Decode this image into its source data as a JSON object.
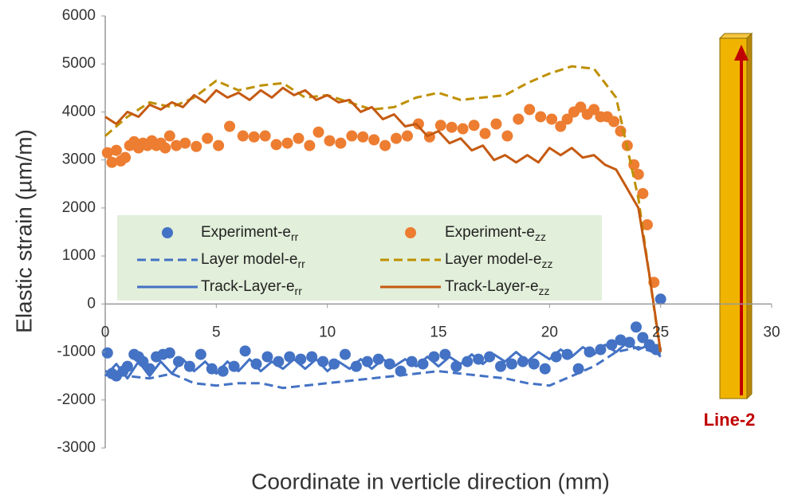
{
  "chart_data": {
    "type": "scatter-line",
    "x_label": "Coordinate in verticle direction (mm)",
    "y_label": "Elastic strain (µm/m)",
    "annotation": "Line-2",
    "xlim": [
      0,
      30
    ],
    "xticks": [
      0,
      5,
      10,
      15,
      20,
      25,
      30
    ],
    "ylim": [
      -3000,
      6000
    ],
    "yticks": [
      -3000,
      -2000,
      -1000,
      0,
      1000,
      2000,
      3000,
      4000,
      5000,
      6000
    ],
    "grid": false,
    "series": [
      {
        "name": "Experiment-e",
        "subscript": "rr",
        "kind": "markers",
        "color": "#4472c4",
        "x": [
          0.1,
          0.3,
          0.5,
          0.8,
          1.0,
          1.3,
          1.5,
          1.7,
          2.0,
          2.3,
          2.6,
          2.9,
          3.3,
          3.8,
          4.3,
          4.8,
          5.3,
          5.8,
          6.3,
          6.8,
          7.3,
          7.8,
          8.3,
          8.8,
          9.3,
          9.8,
          10.3,
          10.8,
          11.3,
          11.8,
          12.3,
          12.8,
          13.3,
          13.8,
          14.3,
          14.8,
          15.3,
          15.8,
          16.3,
          16.8,
          17.3,
          17.8,
          18.3,
          18.8,
          19.3,
          19.8,
          20.3,
          20.8,
          21.3,
          21.8,
          22.3,
          22.8,
          23.2,
          23.6,
          23.9,
          24.2,
          24.5,
          24.8,
          25.0
        ],
        "values": [
          -1020,
          -1450,
          -1500,
          -1400,
          -1300,
          -1050,
          -1100,
          -1200,
          -1350,
          -1100,
          -1050,
          -1020,
          -1200,
          -1300,
          -1050,
          -1350,
          -1400,
          -1300,
          -980,
          -1250,
          -1100,
          -1200,
          -1100,
          -1150,
          -1100,
          -1200,
          -1250,
          -1050,
          -1300,
          -1200,
          -1150,
          -1250,
          -1400,
          -1200,
          -1250,
          -1100,
          -1050,
          -1300,
          -1200,
          -1150,
          -1100,
          -1300,
          -1250,
          -1200,
          -1250,
          -1350,
          -1100,
          -1050,
          -1350,
          -1000,
          -950,
          -850,
          -750,
          -800,
          -480,
          -700,
          -850,
          -950,
          100
        ]
      },
      {
        "name": "Experiment-e",
        "subscript": "zz",
        "kind": "markers",
        "color": "#ed7d31",
        "x": [
          0.1,
          0.3,
          0.5,
          0.7,
          0.9,
          1.1,
          1.3,
          1.5,
          1.7,
          1.9,
          2.1,
          2.3,
          2.5,
          2.7,
          2.9,
          3.2,
          3.6,
          4.1,
          4.6,
          5.1,
          5.6,
          6.2,
          6.7,
          7.2,
          7.7,
          8.2,
          8.7,
          9.2,
          9.6,
          10.1,
          10.6,
          11.1,
          11.6,
          12.1,
          12.6,
          13.1,
          13.6,
          14.1,
          14.6,
          15.1,
          15.6,
          16.1,
          16.6,
          17.1,
          17.6,
          18.1,
          18.6,
          19.1,
          19.6,
          20.1,
          20.5,
          20.8,
          21.1,
          21.4,
          21.7,
          22.0,
          22.3,
          22.6,
          22.9,
          23.2,
          23.5,
          23.8,
          24.0,
          24.2,
          24.4,
          24.7
        ],
        "values": [
          3150,
          2950,
          3200,
          2980,
          3050,
          3300,
          3380,
          3250,
          3350,
          3300,
          3400,
          3300,
          3350,
          3250,
          3500,
          3300,
          3350,
          3280,
          3450,
          3300,
          3700,
          3500,
          3480,
          3500,
          3320,
          3350,
          3450,
          3300,
          3580,
          3400,
          3350,
          3500,
          3480,
          3420,
          3300,
          3450,
          3500,
          3750,
          3480,
          3720,
          3680,
          3650,
          3720,
          3550,
          3750,
          3500,
          3850,
          4050,
          3900,
          3850,
          3700,
          3850,
          4000,
          4100,
          3950,
          4050,
          3900,
          3900,
          3800,
          3600,
          3300,
          2900,
          2700,
          2300,
          1650,
          450
        ]
      },
      {
        "name": "Layer model-e",
        "subscript": "rr",
        "kind": "dashed",
        "color": "#4472c4",
        "x": [
          0,
          1,
          2,
          3,
          4,
          5,
          6,
          7,
          8,
          9,
          10,
          11,
          12,
          13,
          14,
          15,
          16,
          17,
          18,
          19,
          20,
          21,
          22,
          23,
          24,
          25
        ],
        "values": [
          -1400,
          -1500,
          -1550,
          -1450,
          -1650,
          -1700,
          -1650,
          -1650,
          -1750,
          -1700,
          -1650,
          -1600,
          -1550,
          -1500,
          -1450,
          -1400,
          -1450,
          -1500,
          -1550,
          -1650,
          -1700,
          -1500,
          -1300,
          -1000,
          -900,
          -1050
        ]
      },
      {
        "name": "Layer model-e",
        "subscript": "zz",
        "kind": "dashed",
        "color": "#bf9000",
        "x": [
          0,
          1,
          2,
          3,
          4,
          5,
          6,
          7,
          8,
          9,
          10,
          11,
          12,
          13,
          14,
          15,
          16,
          17,
          18,
          19,
          20,
          21,
          22,
          23,
          24,
          25
        ],
        "values": [
          3500,
          3900,
          4200,
          4100,
          4300,
          4650,
          4450,
          4550,
          4600,
          4300,
          4350,
          4200,
          4050,
          4100,
          4300,
          4400,
          4250,
          4300,
          4350,
          4600,
          4800,
          4950,
          4900,
          4300,
          2200,
          -1050
        ]
      },
      {
        "name": "Track-Layer-e",
        "subscript": "rr",
        "kind": "solid",
        "color": "#4472c4",
        "x": [
          0,
          0.5,
          1,
          1.5,
          2,
          2.5,
          3,
          3.5,
          4,
          4.5,
          5,
          5.5,
          6,
          6.5,
          7,
          7.5,
          8,
          8.5,
          9,
          9.5,
          10,
          10.5,
          11,
          11.5,
          12,
          12.5,
          13,
          13.5,
          14,
          14.5,
          15,
          15.5,
          16,
          16.5,
          17,
          17.5,
          18,
          18.5,
          19,
          19.5,
          20,
          20.5,
          21,
          21.5,
          22,
          22.5,
          23,
          23.5,
          24,
          24.5,
          25
        ],
        "values": [
          -1500,
          -1250,
          -1550,
          -1200,
          -1500,
          -1200,
          -1450,
          -1150,
          -1400,
          -1200,
          -1450,
          -1200,
          -1400,
          -1150,
          -1400,
          -1200,
          -1350,
          -1150,
          -1350,
          -1150,
          -1400,
          -1200,
          -1350,
          -1150,
          -1350,
          -1150,
          -1300,
          -1150,
          -1300,
          -1100,
          -1300,
          -1100,
          -1250,
          -1050,
          -1250,
          -1050,
          -1200,
          -1000,
          -1200,
          -1000,
          -1150,
          -950,
          -1100,
          -900,
          -1050,
          -850,
          -1000,
          -800,
          -950,
          -850,
          -1100
        ]
      },
      {
        "name": "Track-Layer-e",
        "subscript": "zz",
        "kind": "solid",
        "color": "#c55a11",
        "x": [
          0,
          0.5,
          1,
          1.5,
          2,
          2.5,
          3,
          3.5,
          4,
          4.5,
          5,
          5.5,
          6,
          6.5,
          7,
          7.5,
          8,
          8.5,
          9,
          9.5,
          10,
          10.5,
          11,
          11.5,
          12,
          12.5,
          13,
          13.5,
          14,
          14.5,
          15,
          15.5,
          16,
          16.5,
          17,
          17.5,
          18,
          18.5,
          19,
          19.5,
          20,
          20.5,
          21,
          21.5,
          22,
          22.5,
          23,
          23.5,
          24,
          24.5,
          25
        ],
        "values": [
          3900,
          3750,
          4000,
          3900,
          4150,
          4050,
          4200,
          4100,
          4350,
          4200,
          4450,
          4300,
          4400,
          4250,
          4450,
          4300,
          4500,
          4350,
          4450,
          4250,
          4350,
          4200,
          4250,
          4000,
          4100,
          3850,
          3950,
          3700,
          3750,
          3500,
          3600,
          3350,
          3450,
          3200,
          3300,
          3000,
          3100,
          2950,
          3100,
          2950,
          3250,
          3100,
          3250,
          3050,
          3100,
          2900,
          2800,
          2400,
          2000,
          600,
          -1000
        ]
      }
    ]
  }
}
